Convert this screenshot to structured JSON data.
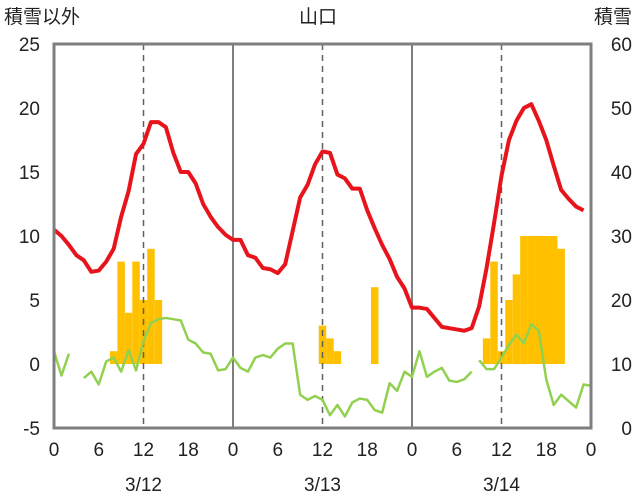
{
  "chart_data": {
    "type": "bar+line",
    "title": "山口",
    "left_axis_label": "積雪以外",
    "right_axis_label": "積雪",
    "left_ylim": [
      -5,
      25
    ],
    "left_yticks": [
      "25",
      "20",
      "15",
      "10",
      "5",
      "0",
      "-5"
    ],
    "right_ylim": [
      0,
      60
    ],
    "right_yticks": [
      "60",
      "50",
      "40",
      "30",
      "20",
      "10",
      "0"
    ],
    "x_hours_range": [
      0,
      72
    ],
    "x_tick_labels": [
      "0",
      "6",
      "12",
      "18",
      "0",
      "6",
      "12",
      "18",
      "0",
      "6",
      "12",
      "18",
      "0"
    ],
    "date_labels": [
      "3/12",
      "3/13",
      "3/14"
    ],
    "grid": {
      "day_separators": true,
      "noon_dashed": true
    },
    "colors": {
      "temperature": "#e8141c",
      "humidity_green": "#92d050",
      "snow_bars": "#ffc000",
      "baseline": "#7030a0",
      "frame": "#7f7f7f"
    },
    "series": [
      {
        "kind": "line",
        "axis": "left",
        "color": "#e8141c",
        "x": [
          0,
          1,
          2,
          3,
          4,
          5,
          6,
          7,
          8,
          9,
          10,
          11,
          12,
          13,
          14,
          15,
          16,
          17,
          18,
          19,
          20,
          21,
          22,
          23,
          24,
          25,
          26,
          27,
          28,
          29,
          30,
          31,
          32,
          33,
          34,
          35,
          36,
          37,
          38,
          39,
          40,
          41,
          42,
          43,
          44,
          45,
          46,
          47,
          48,
          49,
          50,
          51,
          52,
          53,
          54,
          55,
          56,
          57,
          58,
          59,
          60,
          61,
          62,
          63,
          64,
          65,
          66,
          67,
          68,
          69,
          70,
          71
        ],
        "y": [
          10.5,
          10.0,
          9.3,
          8.5,
          8.1,
          7.2,
          7.3,
          8.0,
          9.0,
          11.5,
          13.5,
          16.4,
          17.2,
          18.9,
          18.9,
          18.5,
          16.5,
          15.0,
          15.0,
          14.1,
          12.5,
          11.5,
          10.7,
          10.1,
          9.7,
          9.7,
          8.5,
          8.3,
          7.5,
          7.4,
          7.1,
          7.8,
          10.4,
          13.0,
          14.0,
          15.6,
          16.6,
          16.5,
          14.8,
          14.5,
          13.7,
          13.7,
          12.0,
          10.6,
          9.3,
          8.2,
          6.8,
          5.9,
          4.4,
          4.4,
          4.3,
          3.6,
          2.9,
          2.8,
          2.7,
          2.6,
          2.8,
          4.5,
          7.5,
          11.0,
          14.7,
          17.5,
          19.0,
          20.0,
          20.3,
          19.0,
          17.5,
          15.5,
          13.6,
          12.9,
          12.3,
          12.0
        ]
      },
      {
        "kind": "line",
        "axis": "left",
        "color": "#92d050",
        "segments": [
          {
            "x": [
              0,
              1,
              2
            ],
            "y": [
              1.0,
              -0.9,
              0.8
            ]
          },
          {
            "x": [
              4,
              5,
              6,
              7,
              8,
              9,
              10,
              11,
              12,
              13,
              14,
              15,
              16,
              17,
              18,
              19,
              20,
              21,
              22,
              23,
              24,
              25,
              26,
              27,
              28,
              29,
              30,
              31,
              32,
              33,
              34,
              35,
              36,
              37,
              38,
              39,
              40,
              41,
              42,
              43,
              44,
              45,
              46,
              47,
              48,
              49,
              50,
              51,
              52,
              53,
              54,
              55,
              56
            ],
            "y": [
              -1.1,
              -0.6,
              -1.6,
              0.2,
              0.5,
              -0.6,
              1.1,
              -0.5,
              1.8,
              3.2,
              3.5,
              3.6,
              3.5,
              3.4,
              1.9,
              1.6,
              0.9,
              0.8,
              -0.5,
              -0.4,
              0.5,
              -0.3,
              -0.6,
              0.5,
              0.7,
              0.5,
              1.2,
              1.6,
              1.6,
              -2.4,
              -2.8,
              -2.5,
              -2.8,
              -4.0,
              -3.2,
              -4.1,
              -3.0,
              -2.7,
              -2.8,
              -3.6,
              -3.8,
              -1.5,
              -2.1,
              -0.6,
              -1.0,
              1.0,
              -1.0,
              -0.6,
              -0.3,
              -1.3,
              -1.4,
              -1.2,
              -0.6
            ]
          },
          {
            "x": [
              57,
              58,
              59,
              60,
              61,
              62,
              63,
              64,
              65,
              66,
              67,
              68,
              69,
              70,
              71,
              72
            ],
            "y": [
              0.3,
              -0.4,
              -0.4,
              0.5,
              1.5,
              2.3,
              1.6,
              3.1,
              2.6,
              -1.2,
              -3.2,
              -2.4,
              -2.9,
              -3.4,
              -1.6,
              -1.7
            ]
          }
        ]
      },
      {
        "kind": "bar",
        "axis": "left",
        "color": "#ffc000",
        "bars": [
          {
            "x": 8,
            "value": 1
          },
          {
            "x": 9,
            "value": 8
          },
          {
            "x": 10,
            "value": 4
          },
          {
            "x": 11,
            "value": 8
          },
          {
            "x": 12,
            "value": 5
          },
          {
            "x": 13,
            "value": 9
          },
          {
            "x": 14,
            "value": 5
          },
          {
            "x": 36,
            "value": 3
          },
          {
            "x": 37,
            "value": 2
          },
          {
            "x": 38,
            "value": 1
          },
          {
            "x": 43,
            "value": 6
          },
          {
            "x": 58,
            "value": 2
          },
          {
            "x": 59,
            "value": 8
          },
          {
            "x": 60,
            "value": 1
          },
          {
            "x": 61,
            "value": 5
          },
          {
            "x": 62,
            "value": 7
          },
          {
            "x": 63,
            "value": 10
          },
          {
            "x": 64,
            "value": 10
          },
          {
            "x": 65,
            "value": 10
          },
          {
            "x": 66,
            "value": 10
          },
          {
            "x": 67,
            "value": 10
          },
          {
            "x": 68,
            "value": 9
          }
        ]
      },
      {
        "kind": "line",
        "axis": "left",
        "color": "#7030a0",
        "x": [
          0,
          72
        ],
        "y": [
          -5,
          -5
        ]
      }
    ]
  }
}
